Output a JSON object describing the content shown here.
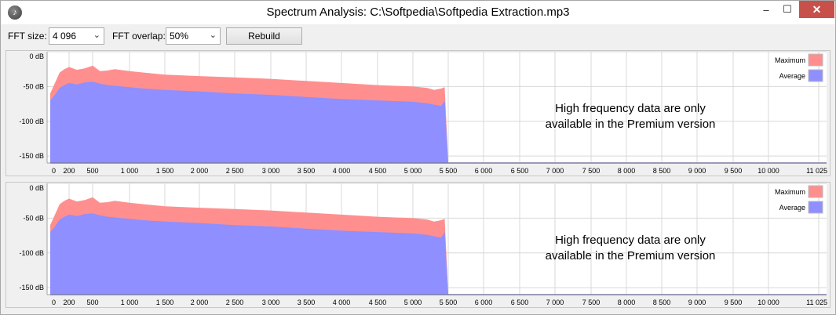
{
  "window": {
    "title": "Spectrum Analysis: C:\\Softpedia\\Softpedia Extraction.mp3",
    "minimize_glyph": "–",
    "maximize_glyph": "☐",
    "close_glyph": "✕"
  },
  "toolbar": {
    "fft_size_label": "FFT size:",
    "fft_size_value": "4 096",
    "fft_overlap_label": "FFT overlap:",
    "fft_overlap_value": "50%",
    "rebuild_label": "Rebuild"
  },
  "colors": {
    "maximum": "#ff8f8f",
    "average": "#8f8fff",
    "baseline": "#3333aa",
    "grid": "#d8d8d8"
  },
  "premium_note": {
    "line1": "High frequency data are only",
    "line2": "available in the Premium version"
  },
  "chart_data": [
    {
      "type": "area",
      "title": "",
      "xlabel": "",
      "ylabel": "",
      "xlim": [
        0,
        11025
      ],
      "ylim": [
        -160,
        0
      ],
      "x_ticks": [
        0,
        200,
        500,
        1000,
        1500,
        2000,
        2500,
        3000,
        3500,
        4000,
        4500,
        5000,
        5500,
        6000,
        6500,
        7000,
        7500,
        8000,
        8500,
        9000,
        9500,
        10000,
        11025
      ],
      "x_tick_labels": [
        "0",
        "200",
        "500",
        "1 000",
        "1 500",
        "2 000",
        "2 500",
        "3 000",
        "3 500",
        "4 000",
        "4 500",
        "5 000",
        "5 500",
        "6 000",
        "6 500",
        "7 000",
        "7 500",
        "8 000",
        "8 500",
        "9 000",
        "9 500",
        "10 000",
        "11 025"
      ],
      "y_ticks": [
        0,
        -50,
        -100,
        -150
      ],
      "y_tick_labels": [
        "0 dB",
        "-50 dB",
        "-100 dB",
        "-150 dB"
      ],
      "grid": true,
      "legend": "top-right",
      "x": [
        0,
        50,
        100,
        150,
        200,
        300,
        400,
        500,
        600,
        700,
        800,
        1000,
        1200,
        1500,
        2000,
        2500,
        3000,
        3500,
        4000,
        4500,
        5000,
        5200,
        5300,
        5400,
        5450,
        5500
      ],
      "series": [
        {
          "name": "Maximum",
          "values": [
            -60,
            -45,
            -30,
            -25,
            -22,
            -26,
            -24,
            -20,
            -28,
            -27,
            -25,
            -28,
            -30,
            -33,
            -35,
            -37,
            -39,
            -42,
            -45,
            -48,
            -50,
            -52,
            -55,
            -53,
            -51,
            -160
          ]
        },
        {
          "name": "Average",
          "values": [
            -70,
            -62,
            -52,
            -48,
            -45,
            -47,
            -44,
            -43,
            -46,
            -48,
            -49,
            -51,
            -53,
            -55,
            -57,
            -60,
            -62,
            -65,
            -68,
            -70,
            -72,
            -74,
            -76,
            -78,
            -70,
            -160
          ]
        }
      ]
    },
    {
      "type": "area",
      "title": "",
      "xlabel": "",
      "ylabel": "",
      "xlim": [
        0,
        11025
      ],
      "ylim": [
        -160,
        0
      ],
      "x_ticks": [
        0,
        200,
        500,
        1000,
        1500,
        2000,
        2500,
        3000,
        3500,
        4000,
        4500,
        5000,
        5500,
        6000,
        6500,
        7000,
        7500,
        8000,
        8500,
        9000,
        9500,
        10000,
        11025
      ],
      "x_tick_labels": [
        "0",
        "200",
        "500",
        "1 000",
        "1 500",
        "2 000",
        "2 500",
        "3 000",
        "3 500",
        "4 000",
        "4 500",
        "5 000",
        "5 500",
        "6 000",
        "6 500",
        "7 000",
        "7 500",
        "8 000",
        "8 500",
        "9 000",
        "9 500",
        "10 000",
        "11 025"
      ],
      "y_ticks": [
        0,
        -50,
        -100,
        -150
      ],
      "y_tick_labels": [
        "0 dB",
        "-50 dB",
        "-100 dB",
        "-150 dB"
      ],
      "grid": true,
      "legend": "top-right",
      "x": [
        0,
        50,
        100,
        150,
        200,
        300,
        400,
        500,
        600,
        700,
        800,
        1000,
        1200,
        1500,
        2000,
        2500,
        3000,
        3500,
        4000,
        4500,
        5000,
        5200,
        5300,
        5400,
        5450,
        5500
      ],
      "series": [
        {
          "name": "Maximum",
          "values": [
            -60,
            -45,
            -30,
            -25,
            -22,
            -26,
            -24,
            -20,
            -28,
            -27,
            -25,
            -28,
            -30,
            -33,
            -35,
            -37,
            -39,
            -42,
            -45,
            -48,
            -50,
            -52,
            -55,
            -53,
            -51,
            -160
          ]
        },
        {
          "name": "Average",
          "values": [
            -70,
            -62,
            -52,
            -48,
            -45,
            -47,
            -44,
            -43,
            -46,
            -48,
            -49,
            -51,
            -53,
            -55,
            -57,
            -60,
            -62,
            -65,
            -68,
            -70,
            -72,
            -74,
            -76,
            -78,
            -70,
            -160
          ]
        }
      ]
    }
  ]
}
